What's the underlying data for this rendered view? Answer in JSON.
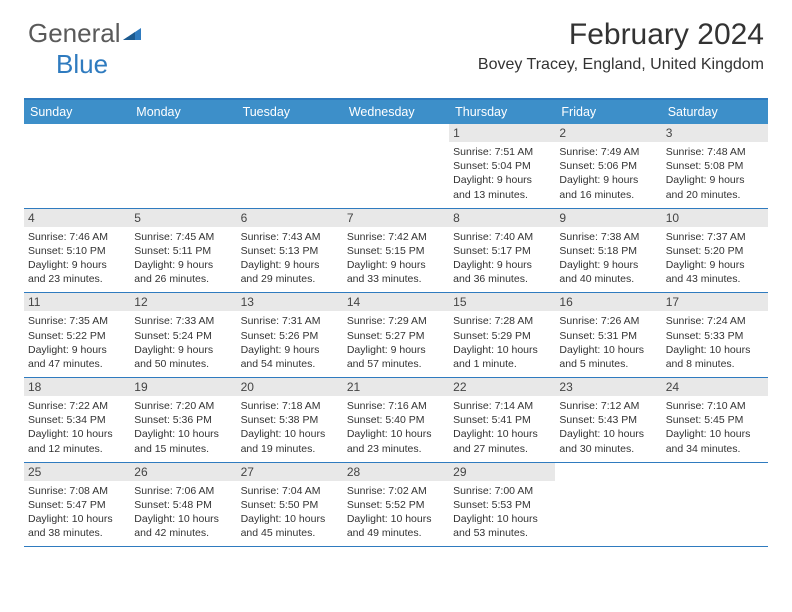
{
  "logo": {
    "general": "General",
    "blue": "Blue"
  },
  "title": "February 2024",
  "location": "Bovey Tracey, England, United Kingdom",
  "colors": {
    "header_bg": "#3d8fc9",
    "rule": "#2f7bbf",
    "date_bar": "#e8e8e8",
    "logo_gray": "#5a5a5a",
    "logo_blue": "#2f7bbf"
  },
  "day_names": [
    "Sunday",
    "Monday",
    "Tuesday",
    "Wednesday",
    "Thursday",
    "Friday",
    "Saturday"
  ],
  "weeks": [
    [
      null,
      null,
      null,
      null,
      {
        "d": "1",
        "sr": "7:51 AM",
        "ss": "5:04 PM",
        "dl": "9 hours and 13 minutes."
      },
      {
        "d": "2",
        "sr": "7:49 AM",
        "ss": "5:06 PM",
        "dl": "9 hours and 16 minutes."
      },
      {
        "d": "3",
        "sr": "7:48 AM",
        "ss": "5:08 PM",
        "dl": "9 hours and 20 minutes."
      }
    ],
    [
      {
        "d": "4",
        "sr": "7:46 AM",
        "ss": "5:10 PM",
        "dl": "9 hours and 23 minutes."
      },
      {
        "d": "5",
        "sr": "7:45 AM",
        "ss": "5:11 PM",
        "dl": "9 hours and 26 minutes."
      },
      {
        "d": "6",
        "sr": "7:43 AM",
        "ss": "5:13 PM",
        "dl": "9 hours and 29 minutes."
      },
      {
        "d": "7",
        "sr": "7:42 AM",
        "ss": "5:15 PM",
        "dl": "9 hours and 33 minutes."
      },
      {
        "d": "8",
        "sr": "7:40 AM",
        "ss": "5:17 PM",
        "dl": "9 hours and 36 minutes."
      },
      {
        "d": "9",
        "sr": "7:38 AM",
        "ss": "5:18 PM",
        "dl": "9 hours and 40 minutes."
      },
      {
        "d": "10",
        "sr": "7:37 AM",
        "ss": "5:20 PM",
        "dl": "9 hours and 43 minutes."
      }
    ],
    [
      {
        "d": "11",
        "sr": "7:35 AM",
        "ss": "5:22 PM",
        "dl": "9 hours and 47 minutes."
      },
      {
        "d": "12",
        "sr": "7:33 AM",
        "ss": "5:24 PM",
        "dl": "9 hours and 50 minutes."
      },
      {
        "d": "13",
        "sr": "7:31 AM",
        "ss": "5:26 PM",
        "dl": "9 hours and 54 minutes."
      },
      {
        "d": "14",
        "sr": "7:29 AM",
        "ss": "5:27 PM",
        "dl": "9 hours and 57 minutes."
      },
      {
        "d": "15",
        "sr": "7:28 AM",
        "ss": "5:29 PM",
        "dl": "10 hours and 1 minute."
      },
      {
        "d": "16",
        "sr": "7:26 AM",
        "ss": "5:31 PM",
        "dl": "10 hours and 5 minutes."
      },
      {
        "d": "17",
        "sr": "7:24 AM",
        "ss": "5:33 PM",
        "dl": "10 hours and 8 minutes."
      }
    ],
    [
      {
        "d": "18",
        "sr": "7:22 AM",
        "ss": "5:34 PM",
        "dl": "10 hours and 12 minutes."
      },
      {
        "d": "19",
        "sr": "7:20 AM",
        "ss": "5:36 PM",
        "dl": "10 hours and 15 minutes."
      },
      {
        "d": "20",
        "sr": "7:18 AM",
        "ss": "5:38 PM",
        "dl": "10 hours and 19 minutes."
      },
      {
        "d": "21",
        "sr": "7:16 AM",
        "ss": "5:40 PM",
        "dl": "10 hours and 23 minutes."
      },
      {
        "d": "22",
        "sr": "7:14 AM",
        "ss": "5:41 PM",
        "dl": "10 hours and 27 minutes."
      },
      {
        "d": "23",
        "sr": "7:12 AM",
        "ss": "5:43 PM",
        "dl": "10 hours and 30 minutes."
      },
      {
        "d": "24",
        "sr": "7:10 AM",
        "ss": "5:45 PM",
        "dl": "10 hours and 34 minutes."
      }
    ],
    [
      {
        "d": "25",
        "sr": "7:08 AM",
        "ss": "5:47 PM",
        "dl": "10 hours and 38 minutes."
      },
      {
        "d": "26",
        "sr": "7:06 AM",
        "ss": "5:48 PM",
        "dl": "10 hours and 42 minutes."
      },
      {
        "d": "27",
        "sr": "7:04 AM",
        "ss": "5:50 PM",
        "dl": "10 hours and 45 minutes."
      },
      {
        "d": "28",
        "sr": "7:02 AM",
        "ss": "5:52 PM",
        "dl": "10 hours and 49 minutes."
      },
      {
        "d": "29",
        "sr": "7:00 AM",
        "ss": "5:53 PM",
        "dl": "10 hours and 53 minutes."
      },
      null,
      null
    ]
  ],
  "labels": {
    "sunrise": "Sunrise:",
    "sunset": "Sunset:",
    "daylight": "Daylight:"
  }
}
